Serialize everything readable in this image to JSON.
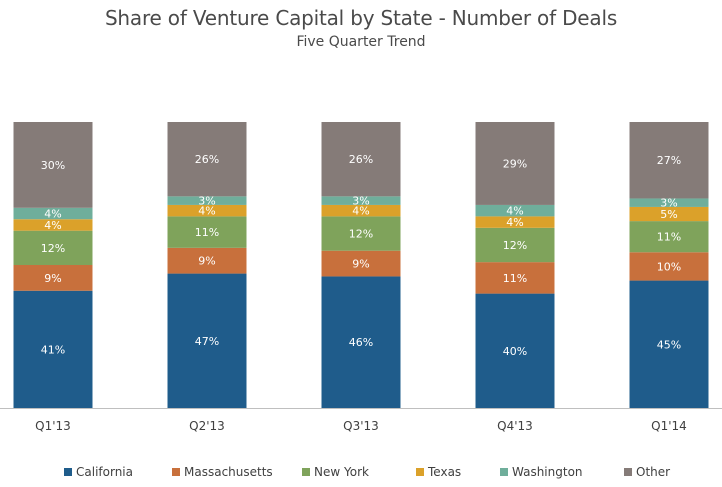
{
  "chart_data": {
    "type": "bar",
    "stacked": true,
    "title": "Share of Venture Capital by State - Number of Deals",
    "subtitle": "Five Quarter Trend",
    "categories": [
      "Q1'13",
      "Q2'13",
      "Q3'13",
      "Q4'13",
      "Q1'14"
    ],
    "series": [
      {
        "name": "California",
        "color": "#1f5c8b",
        "values": [
          41,
          47,
          46,
          40,
          45
        ]
      },
      {
        "name": "Massachusetts",
        "color": "#c8703c",
        "values": [
          9,
          9,
          9,
          11,
          10
        ]
      },
      {
        "name": "New York",
        "color": "#7fa35b",
        "values": [
          12,
          11,
          12,
          12,
          11
        ]
      },
      {
        "name": "Texas",
        "color": "#dba12a",
        "values": [
          4,
          4,
          4,
          4,
          5
        ]
      },
      {
        "name": "Washington",
        "color": "#6fae9b",
        "values": [
          4,
          3,
          3,
          4,
          3
        ]
      },
      {
        "name": "Other",
        "color": "#857b78",
        "values": [
          30,
          26,
          26,
          29,
          27
        ]
      }
    ],
    "value_suffix": "%",
    "ylim": [
      0,
      100
    ],
    "grid": false,
    "legend": "bottom"
  }
}
